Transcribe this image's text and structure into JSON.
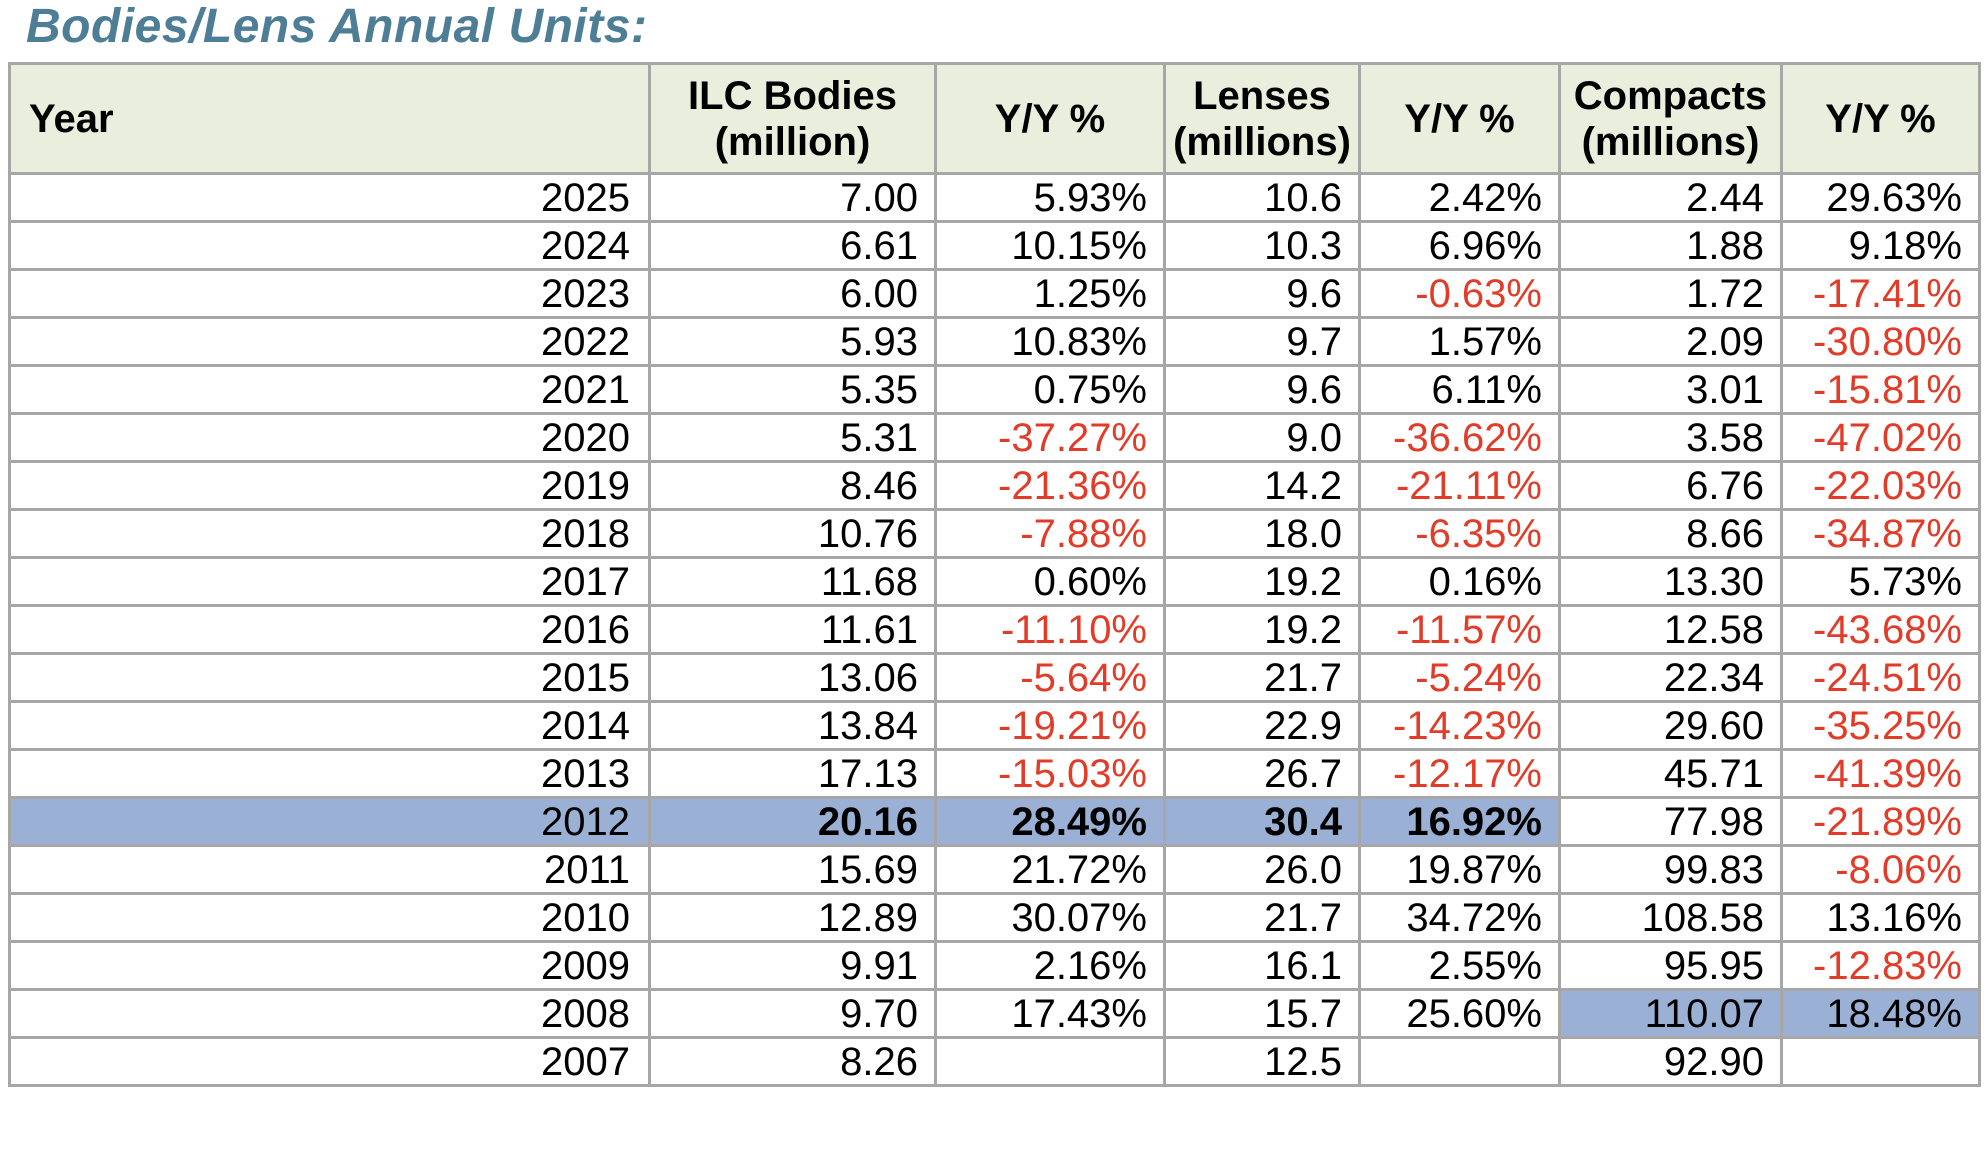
{
  "title": "Bodies/Lens Annual Units:",
  "colors": {
    "title_teal": "#4e7e96",
    "header_bg": "#eaeedd",
    "highlight_blue": "#9ab0d4",
    "negative_red": "#e23b27",
    "grid_line": "#a7a7a7"
  },
  "chart_data": {
    "type": "table",
    "title": "Bodies/Lens Annual Units:",
    "columns": [
      "Year",
      "ILC Bodies\n(million)",
      "Y/Y %",
      "Lenses\n(millions)",
      "Y/Y %",
      "Compacts\n(millions)",
      "Y/Y %"
    ],
    "rows": [
      {
        "cells": [
          "2025",
          "7.00",
          "5.93%",
          "10.6",
          "2.42%",
          "2.44",
          "29.63%"
        ]
      },
      {
        "cells": [
          "2024",
          "6.61",
          "10.15%",
          "10.3",
          "6.96%",
          "1.88",
          "9.18%"
        ]
      },
      {
        "cells": [
          "2023",
          "6.00",
          "1.25%",
          "9.6",
          "-0.63%",
          "1.72",
          "-17.41%"
        ]
      },
      {
        "cells": [
          "2022",
          "5.93",
          "10.83%",
          "9.7",
          "1.57%",
          "2.09",
          "-30.80%"
        ]
      },
      {
        "cells": [
          "2021",
          "5.35",
          "0.75%",
          "9.6",
          "6.11%",
          "3.01",
          "-15.81%"
        ]
      },
      {
        "cells": [
          "2020",
          "5.31",
          "-37.27%",
          "9.0",
          "-36.62%",
          "3.58",
          "-47.02%"
        ]
      },
      {
        "cells": [
          "2019",
          "8.46",
          "-21.36%",
          "14.2",
          "-21.11%",
          "6.76",
          "-22.03%"
        ]
      },
      {
        "cells": [
          "2018",
          "10.76",
          "-7.88%",
          "18.0",
          "-6.35%",
          "8.66",
          "-34.87%"
        ]
      },
      {
        "cells": [
          "2017",
          "11.68",
          "0.60%",
          "19.2",
          "0.16%",
          "13.30",
          "5.73%"
        ]
      },
      {
        "cells": [
          "2016",
          "11.61",
          "-11.10%",
          "19.2",
          "-11.57%",
          "12.58",
          "-43.68%"
        ]
      },
      {
        "cells": [
          "2015",
          "13.06",
          "-5.64%",
          "21.7",
          "-5.24%",
          "22.34",
          "-24.51%"
        ]
      },
      {
        "cells": [
          "2014",
          "13.84",
          "-19.21%",
          "22.9",
          "-14.23%",
          "29.60",
          "-35.25%"
        ]
      },
      {
        "cells": [
          "2013",
          "17.13",
          "-15.03%",
          "26.7",
          "-12.17%",
          "45.71",
          "-41.39%"
        ]
      },
      {
        "cells": [
          "2012",
          "20.16",
          "28.49%",
          "30.4",
          "16.92%",
          "77.98",
          "-21.89%"
        ],
        "highlight": [
          0,
          1,
          2,
          3,
          4
        ],
        "bold": [
          1,
          2,
          3,
          4
        ]
      },
      {
        "cells": [
          "2011",
          "15.69",
          "21.72%",
          "26.0",
          "19.87%",
          "99.83",
          "-8.06%"
        ]
      },
      {
        "cells": [
          "2010",
          "12.89",
          "30.07%",
          "21.7",
          "34.72%",
          "108.58",
          "13.16%"
        ]
      },
      {
        "cells": [
          "2009",
          "9.91",
          "2.16%",
          "16.1",
          "2.55%",
          "95.95",
          "-12.83%"
        ]
      },
      {
        "cells": [
          "2008",
          "9.70",
          "17.43%",
          "15.7",
          "25.60%",
          "110.07",
          "18.48%"
        ],
        "highlight": [
          5,
          6
        ]
      },
      {
        "cells": [
          "2007",
          "8.26",
          "",
          "12.5",
          "",
          "92.90",
          ""
        ]
      }
    ]
  }
}
